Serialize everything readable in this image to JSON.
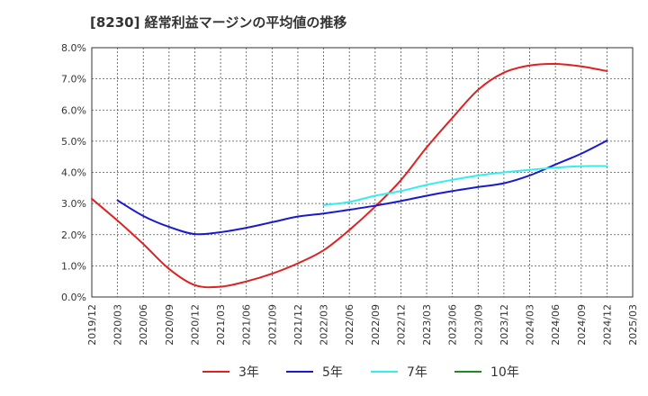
{
  "chart_data": {
    "type": "line",
    "title": "[8230]  経常利益マージンの平均値の推移",
    "xlabel": "",
    "ylabel": "",
    "ylim": [
      0,
      8
    ],
    "grid": true,
    "legend_position": "bottom",
    "x_ticks": [
      "2019/12",
      "2020/03",
      "2020/06",
      "2020/09",
      "2020/12",
      "2021/03",
      "2021/06",
      "2021/09",
      "2021/12",
      "2022/03",
      "2022/06",
      "2022/09",
      "2022/12",
      "2023/03",
      "2023/06",
      "2023/09",
      "2023/12",
      "2024/03",
      "2024/06",
      "2024/09",
      "2024/12",
      "2025/03"
    ],
    "y_ticks": [
      "0.0%",
      "1.0%",
      "2.0%",
      "3.0%",
      "4.0%",
      "5.0%",
      "6.0%",
      "7.0%",
      "8.0%"
    ],
    "series": [
      {
        "name": "3年",
        "color": "#dd2222",
        "x": [
          "2019/12",
          "2020/03",
          "2020/06",
          "2020/09",
          "2020/12",
          "2021/03",
          "2021/06",
          "2021/09",
          "2021/12",
          "2022/03",
          "2022/06",
          "2022/09",
          "2022/12",
          "2023/03",
          "2023/06",
          "2023/09",
          "2023/12",
          "2024/03",
          "2024/06",
          "2024/09",
          "2024/12"
        ],
        "values": [
          3.15,
          2.45,
          1.7,
          0.9,
          0.38,
          0.33,
          0.5,
          0.75,
          1.08,
          1.5,
          2.15,
          2.9,
          3.75,
          4.8,
          5.75,
          6.65,
          7.2,
          7.43,
          7.48,
          7.4,
          7.25
        ]
      },
      {
        "name": "5年",
        "color": "#1a1acc",
        "x": [
          "2020/03",
          "2020/06",
          "2020/09",
          "2020/12",
          "2021/03",
          "2021/06",
          "2021/09",
          "2021/12",
          "2022/03",
          "2022/06",
          "2022/09",
          "2022/12",
          "2023/03",
          "2023/06",
          "2023/09",
          "2023/12",
          "2024/03",
          "2024/06",
          "2024/09",
          "2024/12"
        ],
        "values": [
          3.1,
          2.6,
          2.25,
          2.02,
          2.08,
          2.22,
          2.4,
          2.58,
          2.68,
          2.8,
          2.93,
          3.08,
          3.25,
          3.4,
          3.53,
          3.65,
          3.9,
          4.25,
          4.6,
          5.02
        ]
      },
      {
        "name": "7年",
        "color": "#33eeee",
        "x": [
          "2022/03",
          "2022/06",
          "2022/09",
          "2022/12",
          "2023/03",
          "2023/06",
          "2023/09",
          "2023/12",
          "2024/03",
          "2024/06",
          "2024/09",
          "2024/12"
        ],
        "values": [
          2.95,
          3.05,
          3.25,
          3.4,
          3.6,
          3.76,
          3.9,
          4.0,
          4.08,
          4.15,
          4.2,
          4.2
        ]
      },
      {
        "name": "10年",
        "color": "#228822",
        "x": [],
        "values": []
      }
    ]
  }
}
